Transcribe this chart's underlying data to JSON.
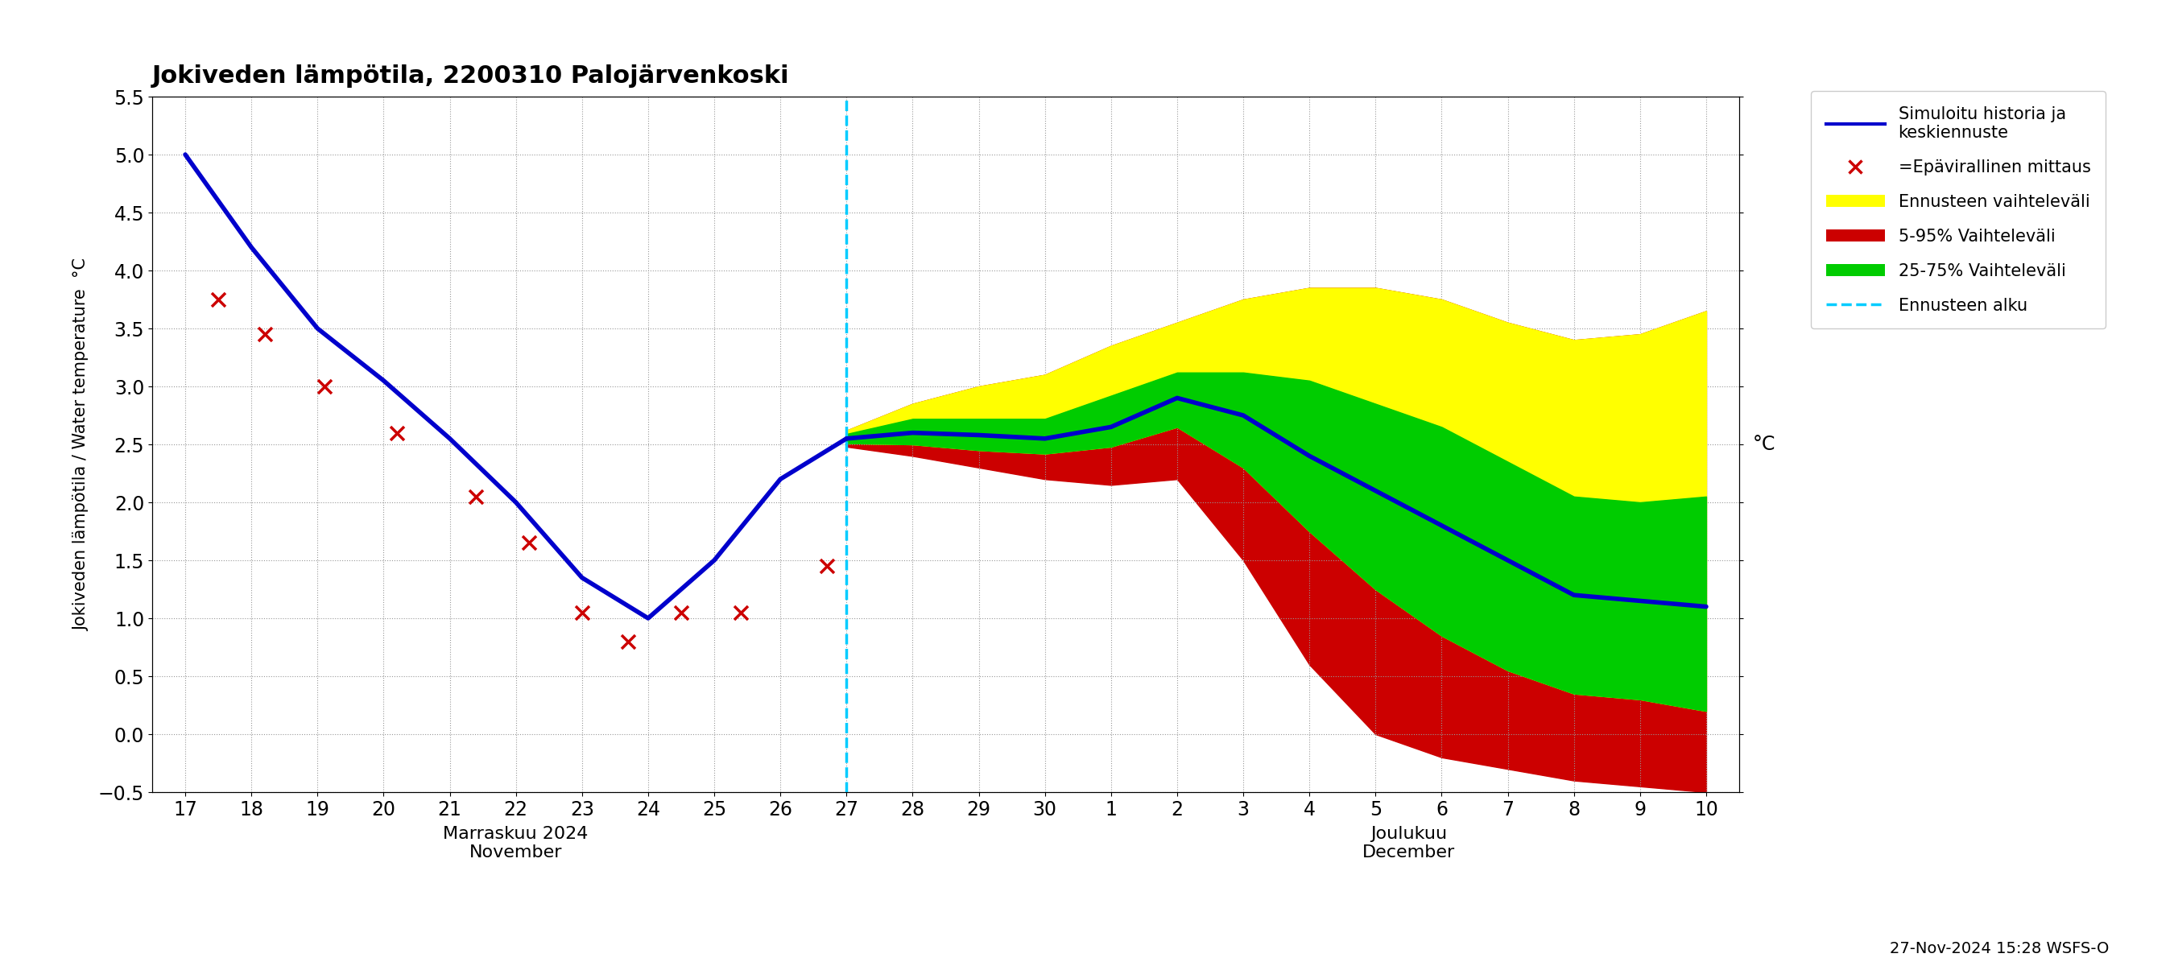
{
  "title": "Jokiveden lämpötila, 2200310 Palojärvenkoski",
  "ylabel": "Jokiveden lämpötila / Water temperature  °C",
  "ylabel_right": "°C",
  "footer": "27-Nov-2024 15:28 WSFS-O",
  "ylim": [
    -0.5,
    5.5
  ],
  "yticks": [
    -0.5,
    0.0,
    0.5,
    1.0,
    1.5,
    2.0,
    2.5,
    3.0,
    3.5,
    4.0,
    4.5,
    5.0,
    5.5
  ],
  "history_x": [
    17,
    18,
    19,
    20,
    21,
    22,
    23,
    24,
    25,
    26,
    27
  ],
  "history_y": [
    5.0,
    4.2,
    3.5,
    3.05,
    2.55,
    2.0,
    1.35,
    1.0,
    1.5,
    2.2,
    2.55
  ],
  "scatter_x": [
    17.5,
    18.2,
    19.1,
    20.2,
    21.4,
    22.2,
    23.0,
    23.7,
    24.5,
    25.4,
    26.7
  ],
  "scatter_y": [
    3.75,
    3.45,
    3.0,
    2.6,
    2.05,
    1.65,
    1.05,
    0.8,
    1.05,
    1.05,
    1.45
  ],
  "forecast_x_numeric": [
    27,
    28,
    29,
    30,
    31,
    32,
    33,
    34,
    35,
    36,
    37,
    38,
    39,
    40
  ],
  "mean_y": [
    2.55,
    2.6,
    2.58,
    2.55,
    2.65,
    2.9,
    2.75,
    2.4,
    2.1,
    1.8,
    1.5,
    1.2,
    1.15,
    1.1
  ],
  "p5_y": [
    2.48,
    2.4,
    2.3,
    2.2,
    2.15,
    2.2,
    1.5,
    0.6,
    0.0,
    -0.2,
    -0.3,
    -0.4,
    -0.45,
    -0.5
  ],
  "p95_y": [
    2.62,
    2.85,
    3.0,
    3.1,
    3.35,
    3.55,
    3.75,
    3.85,
    3.85,
    3.75,
    3.55,
    3.4,
    3.45,
    3.65
  ],
  "p25_y": [
    2.51,
    2.5,
    2.45,
    2.42,
    2.48,
    2.65,
    2.3,
    1.75,
    1.25,
    0.85,
    0.55,
    0.35,
    0.3,
    0.2
  ],
  "p75_y": [
    2.59,
    2.72,
    2.72,
    2.72,
    2.92,
    3.12,
    3.12,
    3.05,
    2.85,
    2.65,
    2.35,
    2.05,
    2.0,
    2.05
  ],
  "color_history": "#0000cc",
  "color_scatter": "#cc0000",
  "color_mean": "#0000cc",
  "color_yellow": "#ffff00",
  "color_red": "#cc0000",
  "color_green": "#00cc00",
  "color_cyan_dashed": "#00ccff",
  "background_color": "#ffffff",
  "grid_color": "#999999"
}
